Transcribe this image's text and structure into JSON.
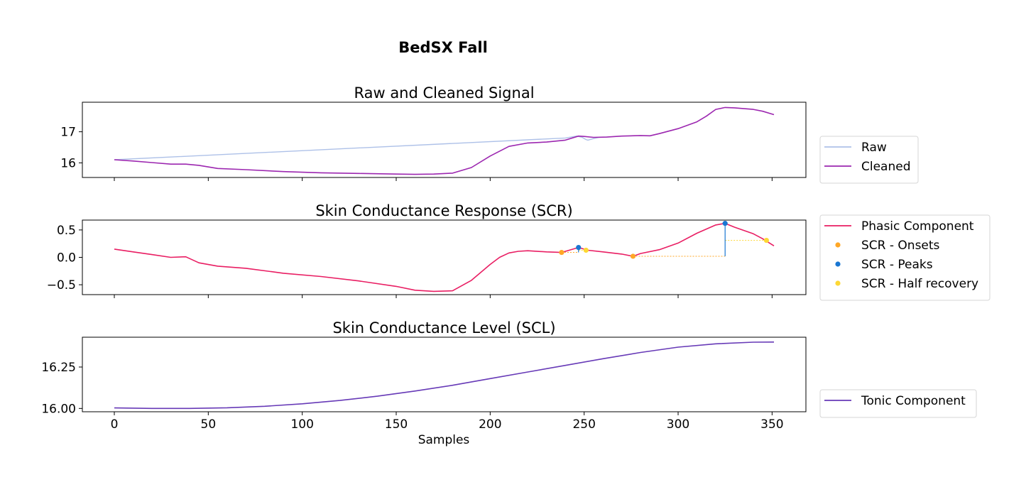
{
  "figure": {
    "suptitle": "BedSX Fall",
    "xlabel": "Samples"
  },
  "colors": {
    "raw": "#aec1e8",
    "cleaned": "#9c27b0",
    "phasic": "#e91e63",
    "onsets": "#ffa726",
    "peaks": "#1976d2",
    "half_recovery": "#fdd835",
    "tonic": "#673ab7"
  },
  "chart_data": [
    {
      "type": "line",
      "title": "Raw and Cleaned Signal",
      "xlim": [
        -17,
        368
      ],
      "ylim": [
        15.53,
        17.95
      ],
      "yticks": [
        16,
        17
      ],
      "xticks": [
        0,
        50,
        100,
        150,
        200,
        250,
        300,
        350
      ],
      "legend": "right",
      "series": [
        {
          "name": "Raw",
          "color_key": "raw",
          "x": [
            0,
            240,
            246,
            249,
            251,
            252,
            255,
            258,
            262
          ],
          "y": [
            16.1,
            16.8,
            16.86,
            16.82,
            16.75,
            16.73,
            16.78,
            16.82,
            16.83
          ]
        },
        {
          "name": "Cleaned",
          "color_key": "cleaned",
          "x": [
            0,
            10,
            20,
            30,
            38,
            45,
            55,
            70,
            90,
            110,
            130,
            150,
            160,
            170,
            180,
            190,
            200,
            210,
            220,
            230,
            240,
            247,
            250,
            255,
            262,
            270,
            280,
            285,
            290,
            300,
            310,
            315,
            320,
            325,
            330,
            340,
            345,
            351
          ],
          "y": [
            16.1,
            16.06,
            16.01,
            15.96,
            15.96,
            15.92,
            15.82,
            15.78,
            15.72,
            15.68,
            15.66,
            15.64,
            15.63,
            15.64,
            15.67,
            15.85,
            16.22,
            16.53,
            16.64,
            16.67,
            16.73,
            16.86,
            16.85,
            16.82,
            16.83,
            16.86,
            16.88,
            16.87,
            16.94,
            17.1,
            17.32,
            17.5,
            17.72,
            17.78,
            17.77,
            17.72,
            17.66,
            17.55
          ]
        }
      ]
    },
    {
      "type": "line",
      "title": "Skin Conductance Response (SCR)",
      "xlim": [
        -17,
        368
      ],
      "ylim": [
        -0.68,
        0.68
      ],
      "yticks": [
        -0.5,
        0.0,
        0.5
      ],
      "ytick_labels": [
        "−0.5",
        "0.0",
        "0.5"
      ],
      "xticks": [
        0,
        50,
        100,
        150,
        200,
        250,
        300,
        350
      ],
      "legend": "right",
      "series": [
        {
          "name": "Phasic Component",
          "color_key": "phasic",
          "x": [
            0,
            10,
            20,
            30,
            38,
            45,
            55,
            70,
            90,
            110,
            130,
            150,
            160,
            170,
            180,
            190,
            200,
            205,
            210,
            215,
            220,
            230,
            238,
            247,
            252,
            260,
            270,
            276,
            280,
            290,
            300,
            310,
            320,
            325,
            330,
            340,
            345,
            351
          ],
          "y": [
            0.15,
            0.1,
            0.05,
            0.0,
            0.01,
            -0.1,
            -0.16,
            -0.2,
            -0.29,
            -0.35,
            -0.43,
            -0.53,
            -0.6,
            -0.62,
            -0.61,
            -0.42,
            -0.13,
            0.0,
            0.08,
            0.11,
            0.12,
            0.1,
            0.09,
            0.18,
            0.13,
            0.1,
            0.06,
            0.02,
            0.07,
            0.14,
            0.26,
            0.44,
            0.59,
            0.62,
            0.55,
            0.43,
            0.34,
            0.21
          ]
        },
        {
          "name": "SCR - Onsets",
          "color_key": "onsets",
          "marker": "dot",
          "x": [
            238,
            276
          ],
          "y": [
            0.09,
            0.02
          ]
        },
        {
          "name": "SCR - Peaks",
          "color_key": "peaks",
          "marker": "dot",
          "x": [
            247,
            325
          ],
          "y": [
            0.18,
            0.62
          ]
        },
        {
          "name": "SCR - Half recovery",
          "color_key": "half_recovery",
          "marker": "dot",
          "x": [
            251,
            347
          ],
          "y": [
            0.13,
            0.31
          ]
        }
      ],
      "annotations": {
        "onset_to_peak_amplitude": [
          {
            "x": 247,
            "y_from": 0.09,
            "y_to": 0.18
          },
          {
            "x": 325,
            "y_from": 0.02,
            "y_to": 0.62
          }
        ],
        "onset_level": [
          {
            "x_from": 238,
            "x_to": 247,
            "y": 0.09
          },
          {
            "x_from": 276,
            "x_to": 325,
            "y": 0.02
          }
        ],
        "half_recovery_level": [
          {
            "x_from": 247,
            "x_to": 251,
            "y": 0.13
          },
          {
            "x_from": 325,
            "x_to": 347,
            "y": 0.31
          }
        ]
      }
    },
    {
      "type": "line",
      "title": "Skin Conductance Level (SCL)",
      "xlim": [
        -17,
        368
      ],
      "ylim": [
        15.98,
        16.43
      ],
      "yticks": [
        16.0,
        16.25
      ],
      "ytick_labels": [
        "16.00",
        "16.25"
      ],
      "xticks": [
        0,
        50,
        100,
        150,
        200,
        250,
        300,
        350
      ],
      "legend": "right",
      "series": [
        {
          "name": "Tonic Component",
          "color_key": "tonic",
          "x": [
            0,
            20,
            40,
            60,
            80,
            100,
            120,
            140,
            160,
            180,
            200,
            220,
            240,
            260,
            280,
            300,
            320,
            340,
            351
          ],
          "y": [
            16.003,
            16.0,
            16.0,
            16.004,
            16.013,
            16.028,
            16.048,
            16.074,
            16.105,
            16.14,
            16.18,
            16.22,
            16.26,
            16.3,
            16.338,
            16.37,
            16.39,
            16.4,
            16.401
          ]
        }
      ]
    }
  ]
}
